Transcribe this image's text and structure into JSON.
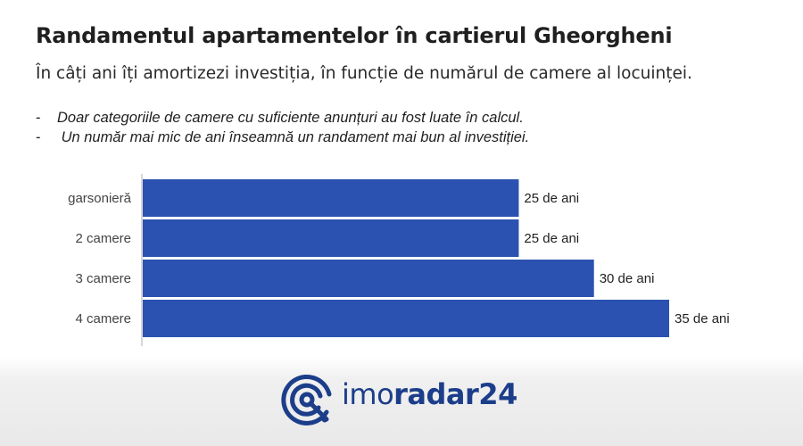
{
  "header": {
    "title": "Randamentul apartamentelor în cartierul Gheorgheni",
    "subtitle": "În câți ani îți amortizezi investiția, în funcție de numărul de camere al locuinței.",
    "notes": [
      "Doar categoriile de camere cu suficiente anunțuri au fost luate în calcul.",
      " Un număr mai mic de ani înseamnă un randament mai bun al investiției."
    ],
    "bullet": "-"
  },
  "chart_data": {
    "type": "bar",
    "orientation": "horizontal",
    "categories": [
      "garsonieră",
      "2 camere",
      "3 camere",
      "4 camere"
    ],
    "values": [
      25,
      25,
      30,
      35
    ],
    "value_labels": [
      "25 de ani",
      "25 de ani",
      "30 de ani",
      "35 de ani"
    ],
    "xlim": [
      0,
      35
    ],
    "bar_color": "#2b52b0",
    "grid": false,
    "legend": "none"
  },
  "footer": {
    "brand_light": "imo",
    "brand_bold": "radar24",
    "brand_color": "#1c3e8a",
    "logo_icon": "radar-target-icon"
  }
}
